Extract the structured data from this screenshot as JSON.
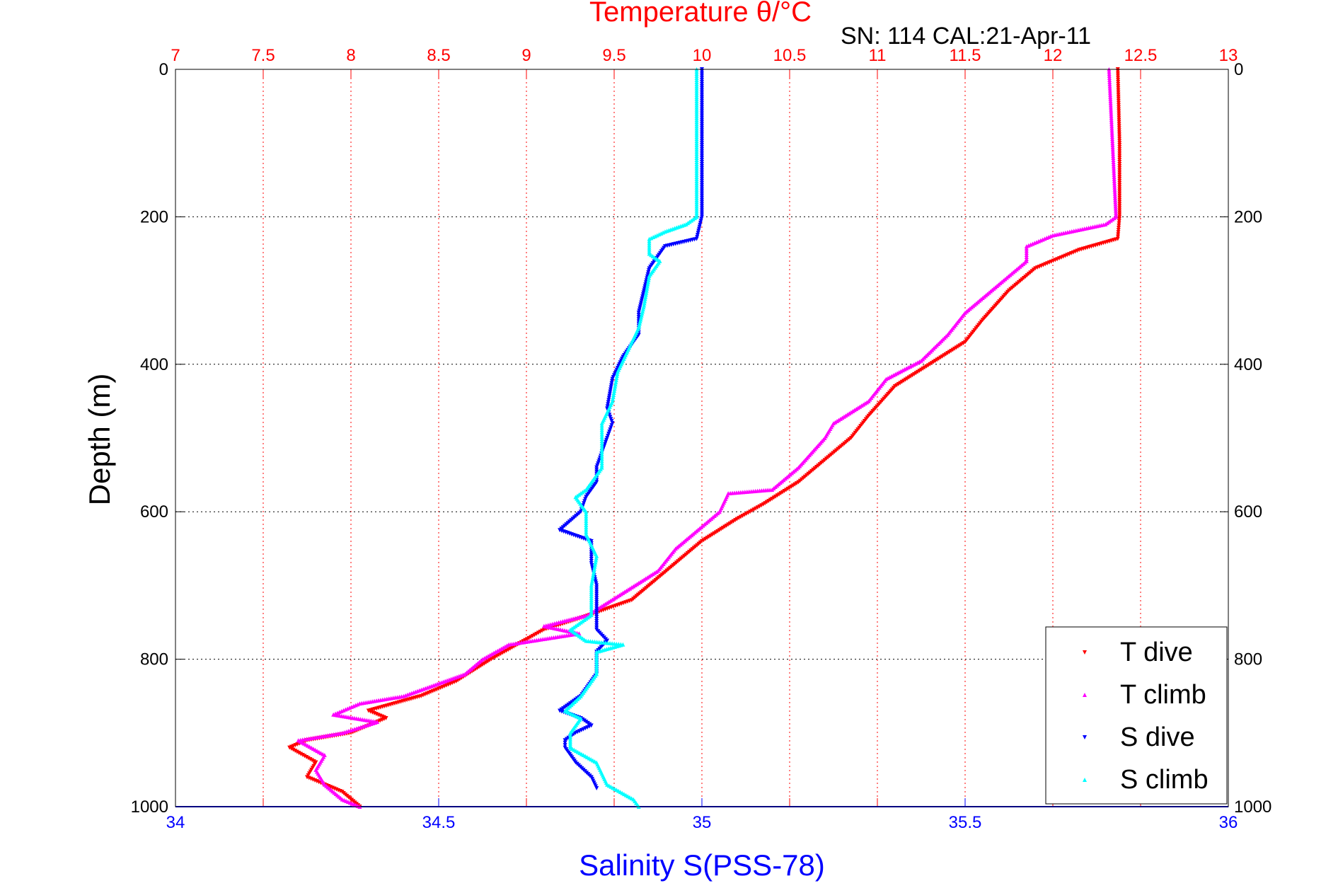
{
  "chart_data": {
    "type": "scatter",
    "title": "SN: 114  CAL:21-Apr-11",
    "top_axis_label": "Temperature θ/°C",
    "bottom_axis_label": "Salinity S(PSS-78)",
    "left_axis_label": "Depth (m)",
    "y_axis": {
      "range": [
        0,
        1000
      ],
      "reversed": true,
      "ticks": [
        "0",
        "200",
        "400",
        "600",
        "800",
        "1000"
      ]
    },
    "top_axis": {
      "range": [
        7,
        13
      ],
      "ticks": [
        "7",
        "7.5",
        "8",
        "8.5",
        "9",
        "9.5",
        "10",
        "10.5",
        "11",
        "11.5",
        "12",
        "12.5",
        "13"
      ],
      "color": "#ff0000"
    },
    "bottom_axis": {
      "range": [
        34,
        36
      ],
      "ticks": [
        "34",
        "34.5",
        "35",
        "35.5",
        "36"
      ],
      "color": "#0000ff"
    },
    "grid": true,
    "legend_position": "bottom-right",
    "series": [
      {
        "name": "T dive",
        "axis": "temperature",
        "color": "#ff0000",
        "marker": "down-triangle",
        "points": [
          [
            12.37,
            0
          ],
          [
            12.38,
            100
          ],
          [
            12.38,
            200
          ],
          [
            12.37,
            230
          ],
          [
            12.15,
            245
          ],
          [
            11.9,
            270
          ],
          [
            11.75,
            300
          ],
          [
            11.6,
            340
          ],
          [
            11.5,
            370
          ],
          [
            11.3,
            400
          ],
          [
            11.1,
            430
          ],
          [
            10.95,
            470
          ],
          [
            10.85,
            500
          ],
          [
            10.7,
            530
          ],
          [
            10.55,
            560
          ],
          [
            10.35,
            590
          ],
          [
            10.2,
            610
          ],
          [
            10.0,
            640
          ],
          [
            9.8,
            680
          ],
          [
            9.6,
            720
          ],
          [
            9.3,
            745
          ],
          [
            9.1,
            760
          ],
          [
            8.95,
            780
          ],
          [
            8.8,
            800
          ],
          [
            8.6,
            830
          ],
          [
            8.4,
            850
          ],
          [
            8.1,
            870
          ],
          [
            8.2,
            880
          ],
          [
            8.0,
            900
          ],
          [
            7.75,
            910
          ],
          [
            7.65,
            920
          ],
          [
            7.8,
            940
          ],
          [
            7.75,
            960
          ],
          [
            7.95,
            980
          ],
          [
            8.05,
            1000
          ]
        ]
      },
      {
        "name": "T climb",
        "axis": "temperature",
        "color": "#ff00ff",
        "marker": "up-triangle",
        "points": [
          [
            12.32,
            0
          ],
          [
            12.34,
            100
          ],
          [
            12.36,
            200
          ],
          [
            12.3,
            210
          ],
          [
            12.0,
            225
          ],
          [
            11.85,
            240
          ],
          [
            11.85,
            260
          ],
          [
            11.7,
            290
          ],
          [
            11.5,
            330
          ],
          [
            11.4,
            360
          ],
          [
            11.25,
            395
          ],
          [
            11.05,
            420
          ],
          [
            10.95,
            450
          ],
          [
            10.75,
            480
          ],
          [
            10.7,
            500
          ],
          [
            10.55,
            540
          ],
          [
            10.4,
            570
          ],
          [
            10.15,
            575
          ],
          [
            10.1,
            600
          ],
          [
            9.95,
            630
          ],
          [
            9.85,
            650
          ],
          [
            9.75,
            680
          ],
          [
            9.55,
            710
          ],
          [
            9.35,
            740
          ],
          [
            9.1,
            755
          ],
          [
            9.3,
            765
          ],
          [
            8.9,
            780
          ],
          [
            8.75,
            800
          ],
          [
            8.65,
            820
          ],
          [
            8.3,
            850
          ],
          [
            8.05,
            860
          ],
          [
            7.9,
            875
          ],
          [
            8.15,
            885
          ],
          [
            7.95,
            900
          ],
          [
            7.7,
            910
          ],
          [
            7.85,
            930
          ],
          [
            7.8,
            950
          ],
          [
            7.85,
            970
          ],
          [
            7.95,
            990
          ],
          [
            8.05,
            1000
          ]
        ]
      },
      {
        "name": "S dive",
        "axis": "salinity",
        "color": "#0000ff",
        "marker": "down-triangle",
        "points": [
          [
            35.0,
            0
          ],
          [
            35.0,
            100
          ],
          [
            35.0,
            200
          ],
          [
            34.99,
            230
          ],
          [
            34.93,
            240
          ],
          [
            34.9,
            270
          ],
          [
            34.89,
            300
          ],
          [
            34.88,
            330
          ],
          [
            34.88,
            360
          ],
          [
            34.85,
            390
          ],
          [
            34.83,
            420
          ],
          [
            34.82,
            460
          ],
          [
            34.83,
            480
          ],
          [
            34.82,
            500
          ],
          [
            34.8,
            540
          ],
          [
            34.8,
            560
          ],
          [
            34.78,
            580
          ],
          [
            34.77,
            600
          ],
          [
            34.73,
            625
          ],
          [
            34.79,
            640
          ],
          [
            34.79,
            670
          ],
          [
            34.8,
            700
          ],
          [
            34.8,
            740
          ],
          [
            34.8,
            760
          ],
          [
            34.82,
            775
          ],
          [
            34.8,
            790
          ],
          [
            34.8,
            820
          ],
          [
            34.77,
            850
          ],
          [
            34.73,
            870
          ],
          [
            34.77,
            880
          ],
          [
            34.79,
            890
          ],
          [
            34.76,
            900
          ],
          [
            34.74,
            910
          ],
          [
            34.74,
            920
          ],
          [
            34.76,
            940
          ],
          [
            34.79,
            960
          ],
          [
            34.8,
            975
          ]
        ]
      },
      {
        "name": "S climb",
        "axis": "salinity",
        "color": "#00ffff",
        "marker": "up-triangle",
        "points": [
          [
            34.99,
            0
          ],
          [
            34.99,
            100
          ],
          [
            34.99,
            200
          ],
          [
            34.97,
            210
          ],
          [
            34.93,
            220
          ],
          [
            34.9,
            230
          ],
          [
            34.9,
            250
          ],
          [
            34.92,
            260
          ],
          [
            34.9,
            280
          ],
          [
            34.89,
            320
          ],
          [
            34.88,
            350
          ],
          [
            34.86,
            380
          ],
          [
            34.84,
            410
          ],
          [
            34.83,
            450
          ],
          [
            34.81,
            480
          ],
          [
            34.81,
            510
          ],
          [
            34.81,
            540
          ],
          [
            34.78,
            570
          ],
          [
            34.76,
            580
          ],
          [
            34.78,
            600
          ],
          [
            34.78,
            630
          ],
          [
            34.8,
            660
          ],
          [
            34.79,
            700
          ],
          [
            34.79,
            740
          ],
          [
            34.75,
            760
          ],
          [
            34.78,
            775
          ],
          [
            34.85,
            780
          ],
          [
            34.8,
            790
          ],
          [
            34.8,
            820
          ],
          [
            34.77,
            850
          ],
          [
            34.74,
            870
          ],
          [
            34.77,
            880
          ],
          [
            34.75,
            900
          ],
          [
            34.75,
            920
          ],
          [
            34.8,
            940
          ],
          [
            34.82,
            970
          ],
          [
            34.87,
            990
          ],
          [
            34.88,
            1000
          ]
        ]
      }
    ]
  }
}
